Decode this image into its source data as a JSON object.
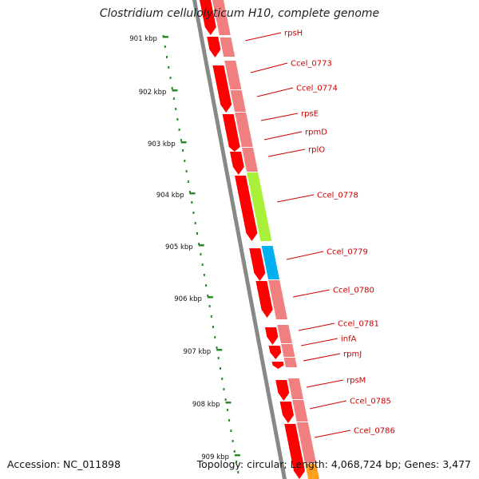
{
  "header": {
    "title": "Clostridium cellulolyticum H10, complete genome"
  },
  "footer": {
    "accession": "Accession: NC_011898",
    "topology": "Topology: circular; Length: 4,068,724 bp; Genes: 3,477"
  },
  "colors": {
    "cds_red": "#ff0000",
    "gene_pink": "#f08080",
    "highlight_green": "#a8f03a",
    "highlight_blue": "#00b0f0",
    "highlight_orange": "#ffa020",
    "tick_green": "#2a8a2a",
    "label_red": "#cc0000",
    "backbone_gray": "#888888"
  },
  "ruler": [
    {
      "label": "901 kbp"
    },
    {
      "label": "902 kbp"
    },
    {
      "label": "903 kbp"
    },
    {
      "label": "904 kbp"
    },
    {
      "label": "905 kbp"
    },
    {
      "label": "906 kbp"
    },
    {
      "label": "907 kbp"
    },
    {
      "label": "908 kbp"
    },
    {
      "label": "909 kbp"
    }
  ],
  "genes": [
    {
      "name": "rpsH"
    },
    {
      "name": "Ccel_0773"
    },
    {
      "name": "Ccel_0774"
    },
    {
      "name": "rpsE"
    },
    {
      "name": "rpmD"
    },
    {
      "name": "rplO"
    },
    {
      "name": "Ccel_0778"
    },
    {
      "name": "Ccel_0779"
    },
    {
      "name": "Ccel_0780"
    },
    {
      "name": "Ccel_0781"
    },
    {
      "name": "infA"
    },
    {
      "name": "rpmJ"
    },
    {
      "name": "rpsM"
    },
    {
      "name": "Ccel_0785"
    },
    {
      "name": "Ccel_0786"
    }
  ]
}
